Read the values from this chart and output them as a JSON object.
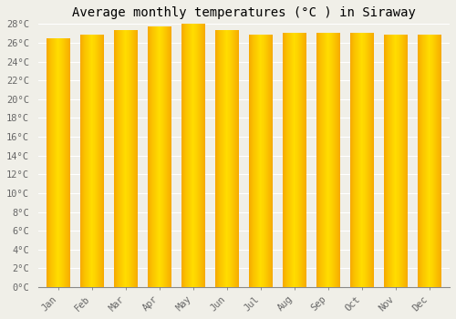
{
  "title": "Average monthly temperatures (°C ) in Siraway",
  "months": [
    "Jan",
    "Feb",
    "Mar",
    "Apr",
    "May",
    "Jun",
    "Jul",
    "Aug",
    "Sep",
    "Oct",
    "Nov",
    "Dec"
  ],
  "temperatures": [
    26.5,
    26.9,
    27.3,
    27.7,
    28.0,
    27.3,
    26.9,
    27.1,
    27.1,
    27.1,
    26.9,
    26.9
  ],
  "bar_color_center": "#FFDD00",
  "bar_color_edge": "#F5A300",
  "background_color": "#F0EFE8",
  "grid_color": "#FFFFFF",
  "ylim": [
    0,
    28
  ],
  "ytick_max": 28,
  "ytick_step": 2,
  "title_fontsize": 10,
  "tick_fontsize": 7.5,
  "font_family": "monospace"
}
